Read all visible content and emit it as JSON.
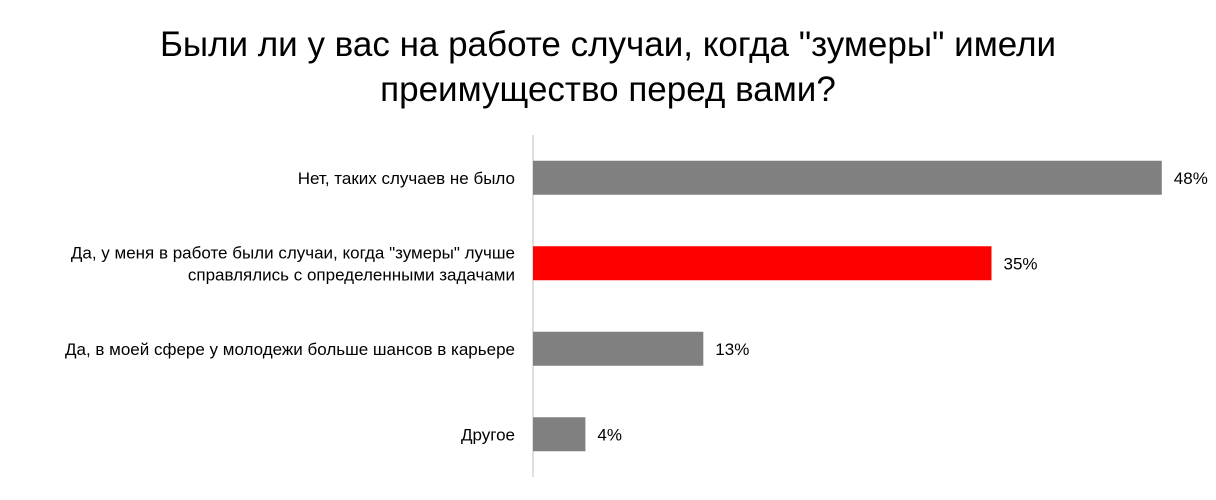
{
  "chart_data": {
    "type": "bar",
    "orientation": "horizontal",
    "title": "Были ли у вас на работе случаи, когда \"зумеры\" имели преимущество перед вами?",
    "categories": [
      [
        "Нет, таких случаев не было"
      ],
      [
        "Да, у меня в работе были случаи, когда \"зумеры\" лучше",
        "справлялись с определенными задачами"
      ],
      [
        "Да, в моей сфере у молодежи больше шансов в карьере"
      ],
      [
        "Другое"
      ]
    ],
    "values": [
      48,
      35,
      13,
      4
    ],
    "value_labels": [
      "48%",
      "35%",
      "13%",
      "4%"
    ],
    "bar_colors": [
      "#808080",
      "#ff0000",
      "#808080",
      "#808080"
    ],
    "xlim": [
      0,
      50
    ],
    "grid": false,
    "legend": false
  }
}
